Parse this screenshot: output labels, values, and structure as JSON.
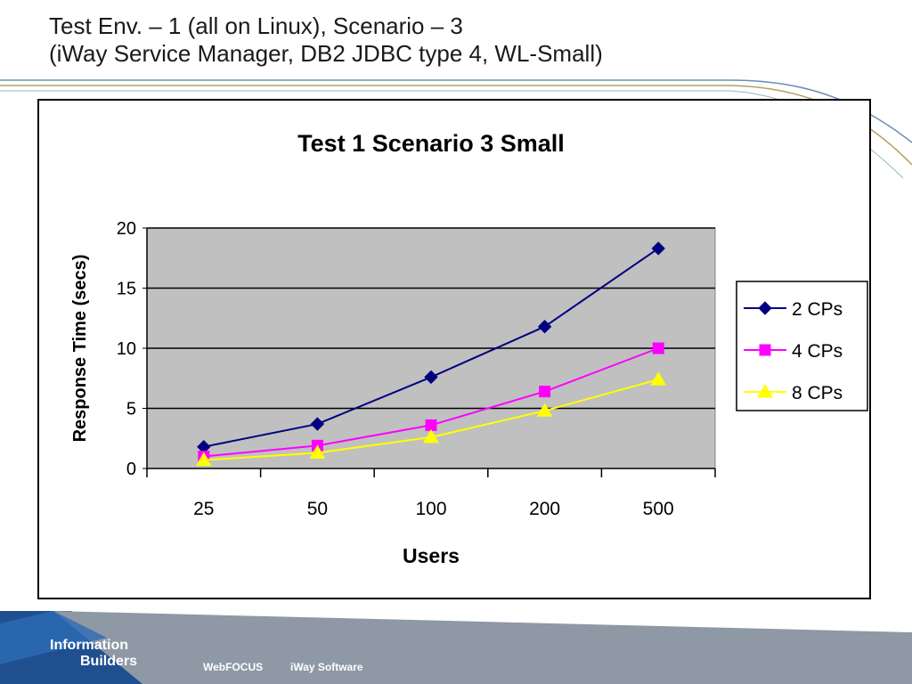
{
  "slide": {
    "title_line1": "Test Env. – 1 (all on Linux), Scenario – 3",
    "title_line2": "(iWay Service Manager, DB2 JDBC type 4, WL-Small)"
  },
  "footer": {
    "logo_line1": "Information",
    "logo_line2": "Builders",
    "link1": "WebFOCUS",
    "link2": "iWay Software"
  },
  "colors": {
    "plot_bg": "#c0c0c0",
    "footer_bg": "#8f98a5",
    "series_2cp": "#000080",
    "series_4cp": "#ff00ff",
    "series_8cp": "#ffff00"
  },
  "chart_data": {
    "type": "line",
    "title": "Test 1 Scenario 3 Small",
    "xlabel": "Users",
    "ylabel": "Response Time (secs)",
    "categories": [
      "25",
      "50",
      "100",
      "200",
      "500"
    ],
    "ylim": [
      0,
      20
    ],
    "yticks": [
      "0",
      "5",
      "10",
      "15",
      "20"
    ],
    "grid": true,
    "legend": "right",
    "series": [
      {
        "name": "2 CPs",
        "values": [
          1.8,
          3.7,
          7.6,
          11.8,
          18.3
        ],
        "color": "#000080",
        "marker": "diamond"
      },
      {
        "name": "4 CPs",
        "values": [
          1.0,
          1.9,
          3.6,
          6.4,
          10.0
        ],
        "color": "#ff00ff",
        "marker": "square"
      },
      {
        "name": "8 CPs",
        "values": [
          0.7,
          1.3,
          2.6,
          4.8,
          7.4
        ],
        "color": "#ffff00",
        "marker": "triangle"
      }
    ]
  }
}
